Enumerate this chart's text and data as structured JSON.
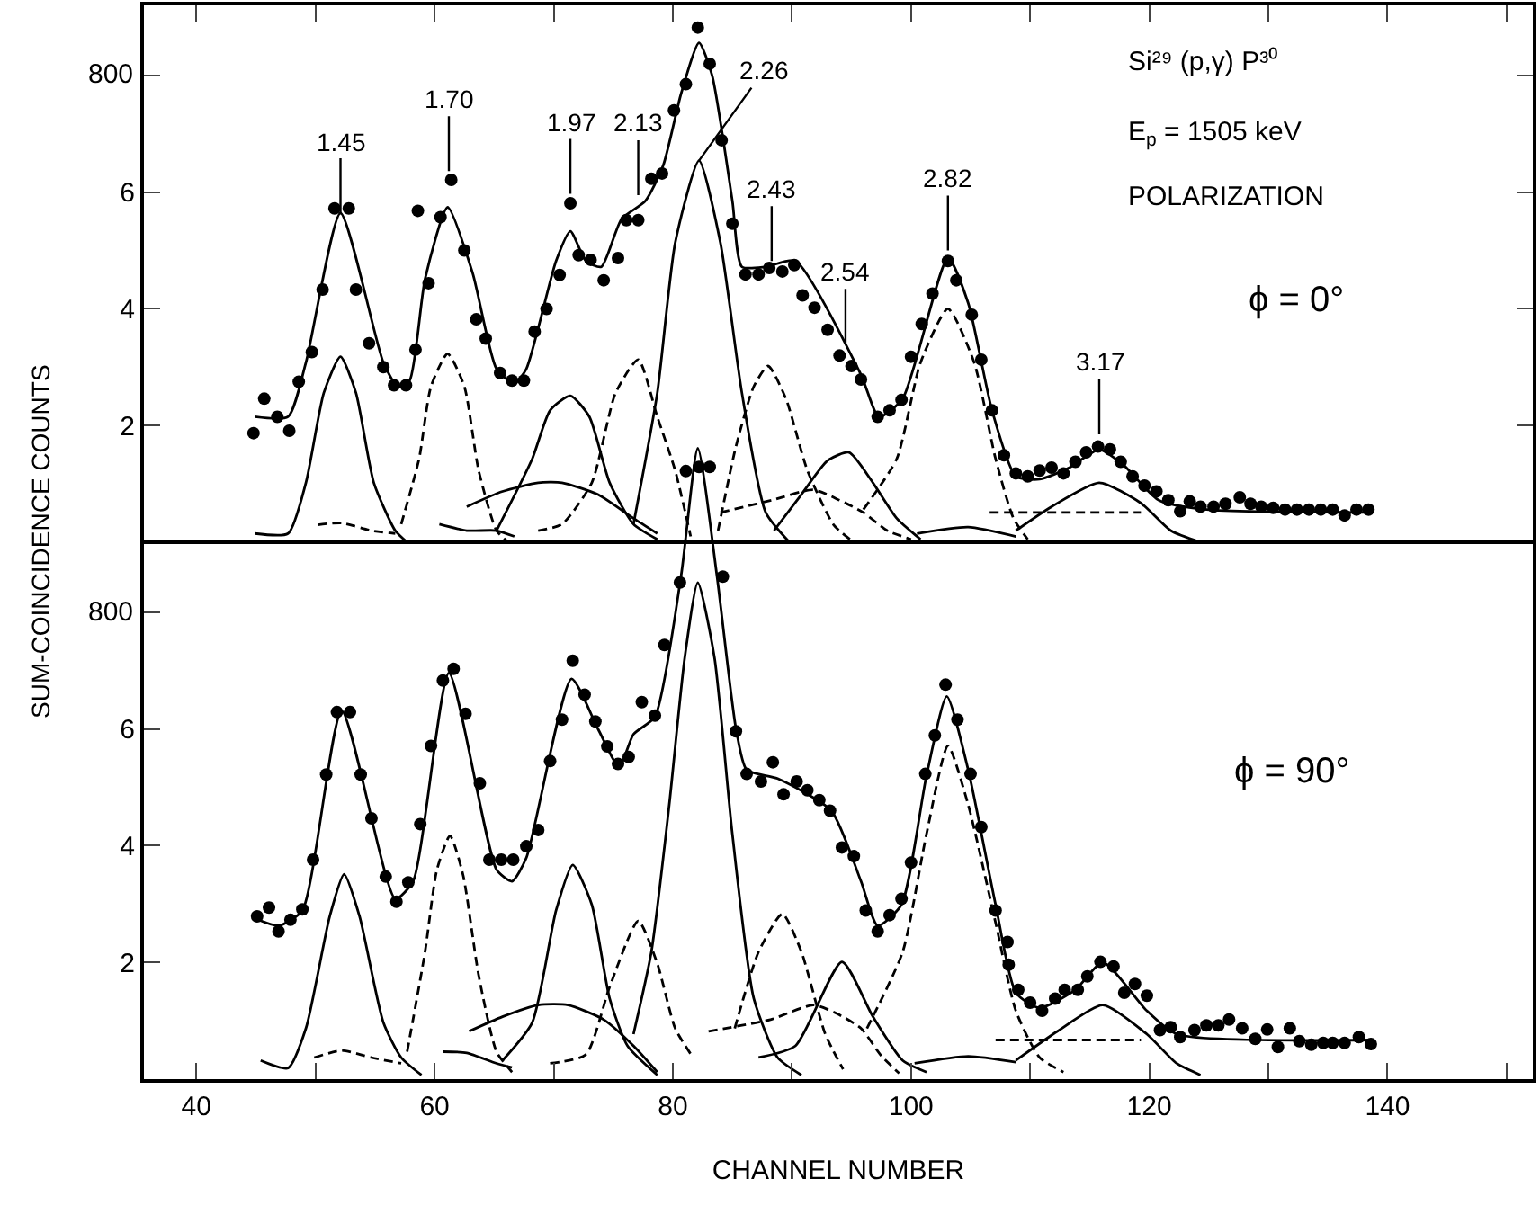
{
  "chart_data": [
    {
      "type": "scatter",
      "marker": "circle",
      "ylabel": "SUM-COINCIDENCE COUNTS",
      "xlim": [
        35.6,
        152.2
      ],
      "ylim": [
        0,
        9.2
      ],
      "xticks": [
        40,
        {
          "value": 50,
          "label": null
        },
        60,
        {
          "value": 70,
          "label": null
        },
        80,
        {
          "value": 90,
          "label": null
        },
        100,
        {
          "value": 110,
          "label": null
        },
        120,
        {
          "value": 130,
          "label": null
        },
        140,
        {
          "value": 150,
          "label": null
        }
      ],
      "yticks": [
        2,
        4,
        6,
        {
          "value": 8,
          "label": null
        }
      ],
      "tick_labels": "y",
      "grid": false,
      "annotations": [
        {
          "text": "1.45",
          "x": 52.1,
          "y": 5.64
        },
        {
          "text": "1.70",
          "x": 61.2,
          "y": 6.36
        },
        {
          "text": "1.97",
          "x": 71.4,
          "y": 5.97
        },
        {
          "text": "2.13",
          "x": 77.1,
          "y": 5.95
        },
        {
          "text": "2.26",
          "x": 82.2,
          "y": 6.54
        },
        {
          "text": "2.43",
          "x": 88.3,
          "y": 4.82
        },
        {
          "text": "2.54",
          "x": 94.5,
          "y": 3.4
        },
        {
          "text": "2.82",
          "x": 103.1,
          "y": 5.0
        },
        {
          "text": "3.17",
          "x": 115.8,
          "y": 1.85
        },
        "Si²⁹ (p,γ) P³⁰",
        "E$_{p}$ = 1505 keV",
        "POLARIZATION",
        "ϕ = 0°",
        "800"
      ],
      "series": [
        {
          "color": "#000000",
          "x": [
            44.8,
            45.7,
            46.8,
            47.8,
            48.6,
            49.7,
            50.6,
            51.6,
            52.8,
            53.4,
            54.5,
            55.7,
            56.6,
            57.6,
            58.4,
            58.6,
            59.5,
            60.5,
            61.4,
            62.5,
            63.5,
            64.3,
            65.5,
            66.5,
            67.5,
            68.4,
            69.4,
            70.5,
            71.4,
            72.1,
            73.1,
            74.2,
            75.4,
            76.1,
            77.1,
            78.2,
            79.1,
            80.1,
            81.1,
            82.1,
            83.1,
            84.1,
            85.0,
            86.1,
            87.2,
            88.1,
            89.2,
            90.2,
            90.9,
            91.9,
            93.0,
            94.0,
            95.0,
            95.8,
            97.2,
            98.2,
            99.2,
            100.0,
            100.9,
            101.8,
            103.1,
            103.8,
            105.1,
            105.9,
            106.8,
            107.8,
            108.8,
            109.8,
            110.8,
            111.8,
            112.8,
            113.8,
            114.7,
            115.7,
            116.7,
            117.6,
            118.6,
            119.6,
            120.6,
            121.6,
            122.6,
            123.4,
            124.3,
            125.4,
            126.4,
            127.6,
            128.5,
            129.4,
            130.4,
            131.4,
            132.4,
            133.4,
            134.4,
            135.4,
            136.4,
            137.4,
            138.4
          ],
          "values": [
            1.87,
            2.46,
            2.15,
            1.91,
            2.75,
            3.26,
            4.33,
            5.72,
            5.72,
            4.33,
            3.41,
            3.0,
            2.69,
            2.69,
            3.3,
            5.68,
            4.44,
            5.57,
            6.21,
            5.0,
            3.82,
            3.49,
            2.9,
            2.77,
            2.77,
            3.61,
            4.0,
            4.58,
            5.81,
            4.92,
            4.84,
            4.49,
            4.87,
            5.52,
            5.52,
            6.23,
            6.32,
            7.4,
            7.85,
            8.82,
            8.2,
            6.89,
            5.46,
            4.59,
            4.59,
            4.7,
            4.64,
            4.75,
            4.23,
            4.02,
            3.64,
            3.2,
            3.02,
            2.79,
            2.15,
            2.26,
            2.44,
            3.18,
            3.74,
            4.26,
            4.82,
            4.49,
            3.9,
            3.13,
            2.26,
            1.49,
            1.18,
            1.13,
            1.23,
            1.28,
            1.18,
            1.38,
            1.54,
            1.64,
            1.59,
            1.38,
            1.13,
            0.97,
            0.87,
            0.72,
            0.53,
            0.7,
            0.61,
            0.61,
            0.66,
            0.77,
            0.66,
            0.61,
            0.59,
            0.56,
            0.56,
            0.56,
            0.56,
            0.56,
            0.46,
            0.56,
            0.56
          ]
        },
        {
          "type": "line",
          "marker": "none",
          "line_style": "solid",
          "color": "#000000",
          "x": [
            44.9,
            47.7,
            49.2,
            52.1,
            55.7,
            56.9,
            57.9,
            59.2,
            61.1,
            63.2,
            65.2,
            66.7,
            67.7,
            70.2,
            71.4,
            72.7,
            74.0,
            75.7,
            77.7,
            79.2,
            80.7,
            82.2,
            83.3,
            85.0,
            85.8,
            87.8,
            90.3,
            95.8,
            97.3,
            99.3,
            103.1,
            104.8,
            106.8,
            108.8,
            110.8,
            113.3,
            115.8,
            117.8,
            120.8,
            124.8,
            138.4
          ],
          "values": [
            2.15,
            2.15,
            3.08,
            5.64,
            3.08,
            2.67,
            2.77,
            4.51,
            5.74,
            4.61,
            2.97,
            2.72,
            2.97,
            4.82,
            5.33,
            4.82,
            4.72,
            5.54,
            5.85,
            6.46,
            7.69,
            8.56,
            8.0,
            5.85,
            4.72,
            4.72,
            4.82,
            2.87,
            2.15,
            2.46,
            4.87,
            4.1,
            2.26,
            1.13,
            1.08,
            1.28,
            1.59,
            1.33,
            0.72,
            0.56,
            0.51
          ]
        },
        {
          "type": "line",
          "marker": "none",
          "line_style": "solid",
          "color": "#000000",
          "x": [
            44.9,
            47.7,
            49.2,
            50.7,
            52.1,
            53.4,
            54.9,
            56.7,
            57.7
          ],
          "values": [
            0.15,
            0.15,
            1.02,
            2.56,
            3.18,
            2.56,
            1.02,
            0.2,
            0
          ]
        },
        {
          "type": "line",
          "marker": "none",
          "line_style": "dashed",
          "color": "#000000",
          "x": [
            50.2,
            52.2,
            54.7,
            56.7
          ],
          "values": [
            0.3,
            0.33,
            0.2,
            0.15
          ]
        },
        {
          "type": "line",
          "marker": "none",
          "line_style": "dashed",
          "color": "#000000",
          "x": [
            57.2,
            58.7,
            59.7,
            61.1,
            62.5,
            63.7,
            65.2,
            66.2
          ],
          "values": [
            0.31,
            1.43,
            2.67,
            3.23,
            2.67,
            1.23,
            0.2,
            0
          ]
        },
        {
          "type": "line",
          "marker": "none",
          "line_style": "solid",
          "color": "#000000",
          "x": [
            60.4,
            62.7,
            65.2,
            66.7
          ],
          "values": [
            0.31,
            0.2,
            0.2,
            0.1
          ]
        },
        {
          "type": "line",
          "marker": "none",
          "line_style": "solid",
          "color": "#000000",
          "x": [
            65.2,
            68.2,
            69.7,
            71.4,
            73.0,
            74.7,
            76.7,
            78.7
          ],
          "values": [
            0.2,
            1.43,
            2.26,
            2.51,
            2.15,
            1.02,
            0.31,
            0.05
          ]
        },
        {
          "type": "line",
          "marker": "none",
          "line_style": "solid",
          "color": "#000000",
          "x": [
            62.7,
            65.7,
            68.7,
            70.7,
            73.7,
            76.7,
            78.7
          ],
          "values": [
            0.61,
            0.87,
            1.02,
            1.02,
            0.82,
            0.41,
            0.15
          ]
        },
        {
          "type": "line",
          "marker": "none",
          "line_style": "dashed",
          "color": "#000000",
          "x": [
            68.7,
            70.7,
            73.2,
            75.2,
            77.1,
            78.7,
            80.2,
            81.5
          ],
          "values": [
            0.2,
            0.31,
            1.02,
            2.56,
            3.13,
            2.15,
            1.23,
            0.1
          ]
        },
        {
          "type": "line",
          "marker": "none",
          "line_style": "solid",
          "color": "#000000",
          "x": [
            76.7,
            78.7,
            80.2,
            82.2,
            84.0,
            85.8,
            87.8,
            89.8
          ],
          "values": [
            0.31,
            2.56,
            5.13,
            6.54,
            5.13,
            2.56,
            0.51,
            0
          ]
        },
        {
          "type": "line",
          "marker": "none",
          "line_style": "dashed",
          "color": "#000000",
          "x": [
            83.8,
            85.3,
            86.8,
            88.0,
            89.5,
            91.3,
            93.5,
            95.0
          ],
          "values": [
            0.2,
            1.64,
            2.67,
            3.02,
            2.46,
            1.23,
            0.3,
            0.03
          ]
        },
        {
          "type": "line",
          "marker": "none",
          "line_style": "dashed",
          "color": "#000000",
          "x": [
            84.0,
            88.3,
            91.8,
            94.0,
            96.0,
            98.0,
            100.0
          ],
          "values": [
            0.51,
            0.72,
            0.9,
            0.72,
            0.51,
            0.2,
            0.05
          ]
        },
        {
          "type": "line",
          "marker": "none",
          "line_style": "solid",
          "color": "#000000",
          "x": [
            88.5,
            90.8,
            93.0,
            94.8,
            96.8,
            98.8,
            100.8
          ],
          "values": [
            0.2,
            0.82,
            1.4,
            1.54,
            1.02,
            0.41,
            0.05
          ]
        },
        {
          "type": "line",
          "marker": "none",
          "line_style": "dashed",
          "color": "#000000",
          "x": [
            96.0,
            98.8,
            100.8,
            103.1,
            105.3,
            107.1,
            108.6,
            109.8
          ],
          "values": [
            0.56,
            1.43,
            3.08,
            4.0,
            3.08,
            1.43,
            0.41,
            0.05
          ]
        },
        {
          "type": "line",
          "marker": "none",
          "line_style": "solid",
          "color": "#000000",
          "x": [
            100.5,
            104.8,
            108.8
          ],
          "values": [
            0.15,
            0.26,
            0.1
          ]
        },
        {
          "type": "line",
          "marker": "none",
          "line_style": "solid",
          "color": "#000000",
          "x": [
            108.8,
            111.8,
            115.8,
            119.3,
            121.8,
            124.3
          ],
          "values": [
            0.2,
            0.61,
            1.02,
            0.67,
            0.2,
            0
          ]
        },
        {
          "type": "line",
          "marker": "none",
          "line_style": "dashed",
          "color": "#000000",
          "x": [
            106.6,
            119.3
          ],
          "values": [
            0.51,
            0.51
          ]
        }
      ]
    },
    {
      "type": "scatter",
      "marker": "circle",
      "xlabel": "CHANNEL NUMBER",
      "xlim": [
        35.6,
        152.2
      ],
      "ylim": [
        0,
        11
      ],
      "xticks": [
        40,
        {
          "value": 50,
          "label": null
        },
        60,
        {
          "value": 70,
          "label": null
        },
        80,
        {
          "value": 90,
          "label": null
        },
        100,
        {
          "value": 110,
          "label": null
        },
        120,
        {
          "value": 130,
          "label": null
        },
        140,
        {
          "value": 150,
          "label": null
        }
      ],
      "yticks": [
        2,
        4,
        6,
        {
          "value": 8,
          "label": null
        }
      ],
      "grid": false,
      "ref_lines": [
        {
          "axis": "y",
          "value": 9.2,
          "color": "#000000",
          "line_style": "solid"
        }
      ],
      "annotations": [
        "ϕ = 90°",
        "800"
      ],
      "series": [
        {
          "color": "#000000",
          "x": [
            45.1,
            46.1,
            46.9,
            47.9,
            48.9,
            49.8,
            50.9,
            51.8,
            52.9,
            53.8,
            54.7,
            55.9,
            56.8,
            57.8,
            58.8,
            59.7,
            60.7,
            61.6,
            62.6,
            63.8,
            64.6,
            65.6,
            66.6,
            67.7,
            68.7,
            69.7,
            70.7,
            71.6,
            72.6,
            73.5,
            74.5,
            75.4,
            76.3,
            77.4,
            78.5,
            79.3,
            80.6,
            81.1,
            82.2,
            83.1,
            84.2,
            85.3,
            86.2,
            87.4,
            88.4,
            89.3,
            90.4,
            91.3,
            92.3,
            93.2,
            94.2,
            95.2,
            96.2,
            97.2,
            98.2,
            99.2,
            100.0,
            101.2,
            102.0,
            102.9,
            103.9,
            105.0,
            105.9,
            107.1,
            108.1,
            108.2,
            109.0,
            110.0,
            111.0,
            112.1,
            112.9,
            114.0,
            114.8,
            115.9,
            117.0,
            117.9,
            118.8,
            119.8,
            120.9,
            121.8,
            122.6,
            123.8,
            124.8,
            125.8,
            126.7,
            127.8,
            128.9,
            129.9,
            130.8,
            131.8,
            132.6,
            133.6,
            134.6,
            135.4,
            136.4,
            137.6,
            138.6
          ],
          "values": [
            2.79,
            2.94,
            2.53,
            2.73,
            2.91,
            3.76,
            5.22,
            6.29,
            6.29,
            5.22,
            4.47,
            3.47,
            3.04,
            3.37,
            4.37,
            5.71,
            6.83,
            7.03,
            6.26,
            5.07,
            3.76,
            3.76,
            3.76,
            3.99,
            4.27,
            5.45,
            6.16,
            7.17,
            6.59,
            6.13,
            5.7,
            5.4,
            5.52,
            6.46,
            6.23,
            7.44,
            8.51,
            10.42,
            10.49,
            10.49,
            8.61,
            5.96,
            5.23,
            5.1,
            5.43,
            4.88,
            5.1,
            4.95,
            4.78,
            4.6,
            3.97,
            3.82,
            2.89,
            2.53,
            2.81,
            3.09,
            3.71,
            5.23,
            5.89,
            6.76,
            6.16,
            5.23,
            4.32,
            2.89,
            2.35,
            1.96,
            1.53,
            1.31,
            1.17,
            1.38,
            1.53,
            1.53,
            1.76,
            2.01,
            1.93,
            1.48,
            1.63,
            1.43,
            0.84,
            0.89,
            0.72,
            0.84,
            0.92,
            0.92,
            1.02,
            0.87,
            0.69,
            0.85,
            0.55,
            0.87,
            0.65,
            0.59,
            0.62,
            0.62,
            0.62,
            0.72,
            0.6
          ]
        },
        {
          "type": "line",
          "marker": "none",
          "line_style": "solid",
          "color": "#000000",
          "x": [
            45.1,
            46.9,
            48.9,
            52.2,
            56.7,
            58.2,
            61.2,
            65.2,
            66.5,
            67.7,
            71.5,
            73.7,
            75.5,
            76.7,
            78.5,
            80.7,
            82.1,
            83.7,
            85.3,
            86.2,
            88.8,
            93.3,
            95.8,
            97.2,
            99.2,
            101.3,
            103.0,
            104.8,
            107.1,
            108.8,
            110.8,
            113.8,
            116.1,
            119.8,
            122.3,
            138.6
          ],
          "values": [
            2.74,
            2.63,
            2.89,
            6.31,
            3.09,
            3.39,
            6.96,
            3.59,
            3.39,
            3.79,
            6.86,
            6.01,
            5.35,
            5.91,
            6.21,
            8.63,
            10.81,
            8.63,
            6.01,
            5.3,
            5.15,
            4.6,
            3.39,
            2.63,
            2.99,
            5.2,
            6.56,
            5.3,
            2.99,
            1.48,
            1.22,
            1.53,
            2.0,
            1.17,
            0.77,
            0.67
          ]
        },
        {
          "type": "line",
          "marker": "none",
          "line_style": "solid",
          "color": "#000000",
          "x": [
            45.4,
            47.7,
            49.2,
            51.2,
            52.4,
            53.7,
            55.7,
            57.2,
            58.9
          ],
          "values": [
            0.32,
            0.19,
            0.87,
            2.79,
            3.51,
            2.79,
            0.97,
            0.37,
            0.07
          ]
        },
        {
          "type": "line",
          "marker": "none",
          "line_style": "dashed",
          "color": "#000000",
          "x": [
            49.9,
            52.2,
            54.7,
            57.2
          ],
          "values": [
            0.37,
            0.49,
            0.37,
            0.27
          ]
        },
        {
          "type": "line",
          "marker": "none",
          "line_style": "dashed",
          "color": "#000000",
          "x": [
            57.7,
            59.2,
            60.2,
            61.3,
            62.4,
            63.7,
            65.2,
            66.5
          ],
          "values": [
            0.47,
            2.18,
            3.59,
            4.17,
            3.49,
            1.78,
            0.47,
            0.12
          ]
        },
        {
          "type": "line",
          "marker": "none",
          "line_style": "solid",
          "color": "#000000",
          "x": [
            60.7,
            62.7,
            65.2,
            66.5
          ],
          "values": [
            0.47,
            0.45,
            0.27,
            0.2
          ]
        },
        {
          "type": "line",
          "marker": "none",
          "line_style": "solid",
          "color": "#000000",
          "x": [
            65.7,
            68.2,
            70.2,
            71.6,
            73.2,
            74.7,
            76.2,
            78.7
          ],
          "values": [
            0.32,
            0.97,
            2.89,
            3.67,
            2.99,
            1.38,
            0.57,
            0.07
          ]
        },
        {
          "type": "line",
          "marker": "none",
          "line_style": "solid",
          "color": "#000000",
          "x": [
            62.9,
            65.7,
            68.7,
            71.2,
            74.2,
            76.7,
            78.7
          ],
          "values": [
            0.82,
            1.07,
            1.27,
            1.27,
            1.02,
            0.57,
            0.12
          ]
        },
        {
          "type": "line",
          "marker": "none",
          "line_style": "dashed",
          "color": "#000000",
          "x": [
            69.7,
            72.7,
            74.7,
            77.1,
            78.7,
            80.2,
            81.7
          ],
          "values": [
            0.27,
            0.42,
            1.58,
            2.71,
            1.98,
            0.87,
            0.37
          ]
        },
        {
          "type": "line",
          "marker": "none",
          "line_style": "solid",
          "color": "#000000",
          "x": [
            76.7,
            78.2,
            79.7,
            81.0,
            82.1,
            83.5,
            85.0,
            86.8,
            88.8,
            90.8
          ],
          "values": [
            0.77,
            2.18,
            4.7,
            7.22,
            8.51,
            7.22,
            4.2,
            1.38,
            0.37,
            0.07
          ]
        },
        {
          "type": "line",
          "marker": "none",
          "line_style": "dashed",
          "color": "#000000",
          "x": [
            85.2,
            87.2,
            89.2,
            90.8,
            92.8,
            94.3
          ],
          "values": [
            0.87,
            2.18,
            2.83,
            2.18,
            0.77,
            0.17
          ]
        },
        {
          "type": "line",
          "marker": "none",
          "line_style": "dashed",
          "color": "#000000",
          "x": [
            83.0,
            88.2,
            91.8,
            93.8,
            95.8,
            97.5,
            99.0
          ],
          "values": [
            0.82,
            1.02,
            1.27,
            1.12,
            0.87,
            0.4,
            0.1
          ]
        },
        {
          "type": "line",
          "marker": "none",
          "line_style": "solid",
          "color": "#000000",
          "x": [
            87.2,
            90.3,
            94.2,
            96.8,
            99.3,
            101.3
          ],
          "values": [
            0.37,
            0.57,
            2.01,
            1.07,
            0.32,
            0.12
          ]
        },
        {
          "type": "line",
          "marker": "none",
          "line_style": "dashed",
          "color": "#000000",
          "x": [
            96.3,
            99.3,
            101.3,
            103.1,
            104.8,
            107.1,
            108.8,
            110.8,
            112.8
          ],
          "values": [
            0.87,
            2.18,
            4.2,
            5.71,
            4.7,
            2.68,
            1.17,
            0.37,
            0.12
          ]
        },
        {
          "type": "line",
          "marker": "none",
          "line_style": "solid",
          "color": "#000000",
          "x": [
            100.3,
            104.8,
            108.8
          ],
          "values": [
            0.27,
            0.39,
            0.29
          ]
        },
        {
          "type": "line",
          "marker": "none",
          "line_style": "solid",
          "color": "#000000",
          "x": [
            108.8,
            112.3,
            116.1,
            119.8,
            122.3,
            124.3
          ],
          "values": [
            0.32,
            0.82,
            1.27,
            0.77,
            0.27,
            0.07
          ]
        },
        {
          "type": "line",
          "marker": "none",
          "line_style": "dashed",
          "color": "#000000",
          "x": [
            107.1,
            119.3
          ],
          "values": [
            0.67,
            0.67
          ]
        }
      ]
    }
  ]
}
